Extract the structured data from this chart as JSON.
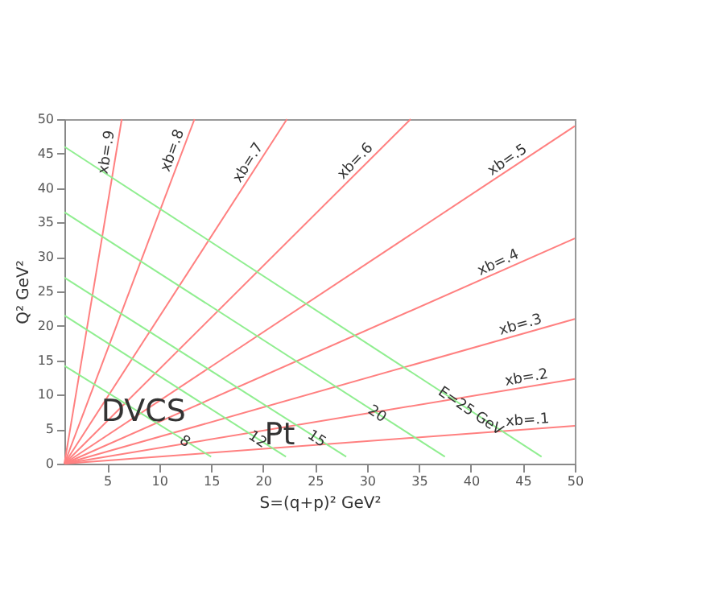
{
  "chart_data": {
    "type": "line",
    "xlabel": "S=(q+p)² GeV²",
    "ylabel": "Q² GeV²",
    "xlim": [
      0.88,
      50
    ],
    "ylim": [
      0,
      50
    ],
    "xticks": [
      5,
      10,
      15,
      20,
      25,
      30,
      35,
      40,
      45,
      50
    ],
    "yticks": [
      0,
      5,
      10,
      15,
      20,
      25,
      30,
      35,
      40,
      45,
      50
    ],
    "grid": false,
    "marker": "none",
    "line_style": "solid",
    "series": [
      {
        "color": "#ff8080",
        "x": [
          0.88,
          50
        ],
        "values": [
          0,
          5.5
        ]
      },
      {
        "color": "#ff8080",
        "x": [
          0.88,
          50
        ],
        "values": [
          0,
          12.3
        ]
      },
      {
        "color": "#ff8080",
        "x": [
          0.88,
          50
        ],
        "values": [
          0,
          21
        ]
      },
      {
        "color": "#ff8080",
        "x": [
          0.88,
          50
        ],
        "values": [
          0,
          32.7
        ]
      },
      {
        "color": "#ff8080",
        "x": [
          0.88,
          50
        ],
        "values": [
          0,
          49
        ]
      },
      {
        "color": "#ff8080",
        "x": [
          0.88,
          34.2
        ],
        "values": [
          0,
          50
        ]
      },
      {
        "color": "#ff8080",
        "x": [
          0.88,
          22.3
        ],
        "values": [
          0,
          50
        ]
      },
      {
        "color": "#ff8080",
        "x": [
          0.88,
          13.4
        ],
        "values": [
          0,
          50
        ]
      },
      {
        "color": "#ff8080",
        "x": [
          0.88,
          6.4
        ],
        "values": [
          0,
          50
        ]
      },
      {
        "color": "#90ee90",
        "x": [
          0.88,
          15
        ],
        "values": [
          14.2,
          1
        ]
      },
      {
        "color": "#90ee90",
        "x": [
          0.88,
          22.2
        ],
        "values": [
          21.5,
          1
        ]
      },
      {
        "color": "#90ee90",
        "x": [
          0.88,
          28
        ],
        "values": [
          27,
          1
        ]
      },
      {
        "color": "#90ee90",
        "x": [
          0.88,
          37.5
        ],
        "values": [
          36.5,
          1
        ]
      },
      {
        "color": "#90ee90",
        "x": [
          0.88,
          46.8
        ],
        "values": [
          46,
          1
        ]
      }
    ],
    "annotations": [
      {
        "text": "xb=.1",
        "x": 45.5,
        "y": 5
      },
      {
        "text": "xb=.2",
        "x": 45.5,
        "y": 11.2
      },
      {
        "text": "xb=.3",
        "x": 45,
        "y": 18.9
      },
      {
        "text": "xb=.4",
        "x": 43,
        "y": 28
      },
      {
        "text": "xb=.5",
        "x": 44,
        "y": 43
      },
      {
        "text": "xb=.6",
        "x": 29.5,
        "y": 43
      },
      {
        "text": "xb=.7",
        "x": 19.3,
        "y": 43
      },
      {
        "text": "xb=.8",
        "x": 12.1,
        "y": 45
      },
      {
        "text": "xb=.9",
        "x": 5.8,
        "y": 45
      },
      {
        "text": "8",
        "x": 12.5,
        "y": 3.3
      },
      {
        "text": "12",
        "x": 19.5,
        "y": 3.6
      },
      {
        "text": "15",
        "x": 25.2,
        "y": 3.7
      },
      {
        "text": "20",
        "x": 31,
        "y": 7.3
      },
      {
        "text": "E=25 GeV",
        "x": 40,
        "y": 7.7
      },
      {
        "text": "DVCS",
        "x": 8.5,
        "y": 7.6
      },
      {
        "text": "Pt",
        "x": 21.6,
        "y": 4.2
      }
    ]
  }
}
